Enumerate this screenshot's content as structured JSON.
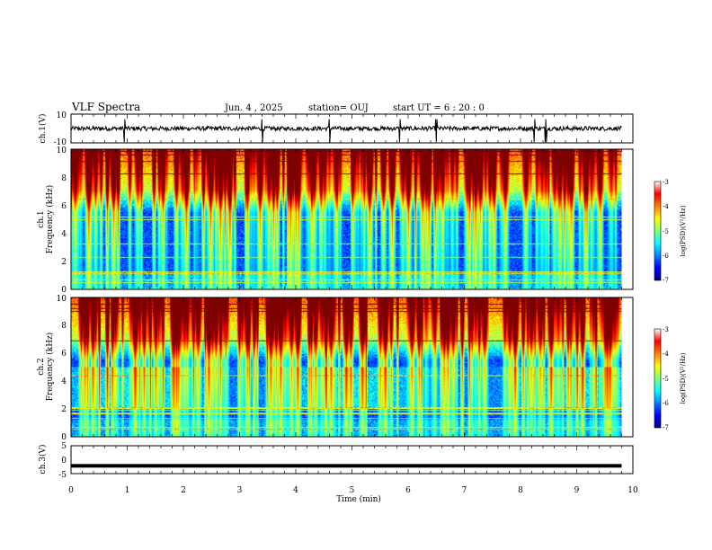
{
  "header": {
    "title": "VLF Spectra",
    "date": "Jun. 4 , 2025",
    "station": "station= OUJ",
    "start_ut": "start  UT =   6  : 20 : 0"
  },
  "chart_data": [
    {
      "type": "line",
      "name": "ch1-waveform",
      "ylabel": "ch.1(V)",
      "ylim": [
        -10,
        10
      ],
      "yticks": [
        "10",
        "-10"
      ],
      "xlim": [
        0,
        10
      ],
      "baseline": 0,
      "spike_times_min": [
        0.95,
        3.4,
        4.6,
        5.85,
        6.5,
        8.25,
        8.45
      ],
      "data_end_min": 9.8,
      "color": "#000000"
    },
    {
      "type": "heatmap",
      "name": "ch1-spectrogram",
      "ylabel_line1": "ch.1",
      "ylabel_line2": "Frequency (kHz)",
      "ylim": [
        0,
        10
      ],
      "yticks": [
        "0",
        "2",
        "4",
        "6",
        "8",
        "10"
      ],
      "xlim": [
        0,
        10
      ],
      "data_end_min": 9.8,
      "colorbar": {
        "label": "log(PSD)(V²/Hz)",
        "range": [
          -7,
          -3
        ],
        "ticks": [
          "-3",
          "-4",
          "-5",
          "-6",
          "-7"
        ]
      }
    },
    {
      "type": "heatmap",
      "name": "ch2-spectrogram",
      "ylabel_line1": "ch.2",
      "ylabel_line2": "Frequency (kHz)",
      "ylim": [
        0,
        10
      ],
      "yticks": [
        "0",
        "2",
        "4",
        "6",
        "8",
        "10"
      ],
      "xlim": [
        0,
        10
      ],
      "data_end_min": 9.8,
      "colorbar": {
        "label": "log(PSD)(V²/Hz)",
        "range": [
          -7,
          -3
        ],
        "ticks": [
          "-3",
          "-4",
          "-5",
          "-6",
          "-7"
        ]
      }
    },
    {
      "type": "line",
      "name": "ch3-waveform",
      "ylabel": "ch.3(V)",
      "ylim": [
        -5,
        5
      ],
      "yticks": [
        "5",
        "0",
        "-5"
      ],
      "xlim": [
        0,
        10
      ],
      "level": -2.2,
      "data_end_min": 9.8,
      "color": "#000000"
    }
  ],
  "xaxis": {
    "label": "Time  (min)",
    "ticks": [
      "0",
      "1",
      "2",
      "3",
      "4",
      "5",
      "6",
      "7",
      "8",
      "9",
      "10"
    ]
  }
}
